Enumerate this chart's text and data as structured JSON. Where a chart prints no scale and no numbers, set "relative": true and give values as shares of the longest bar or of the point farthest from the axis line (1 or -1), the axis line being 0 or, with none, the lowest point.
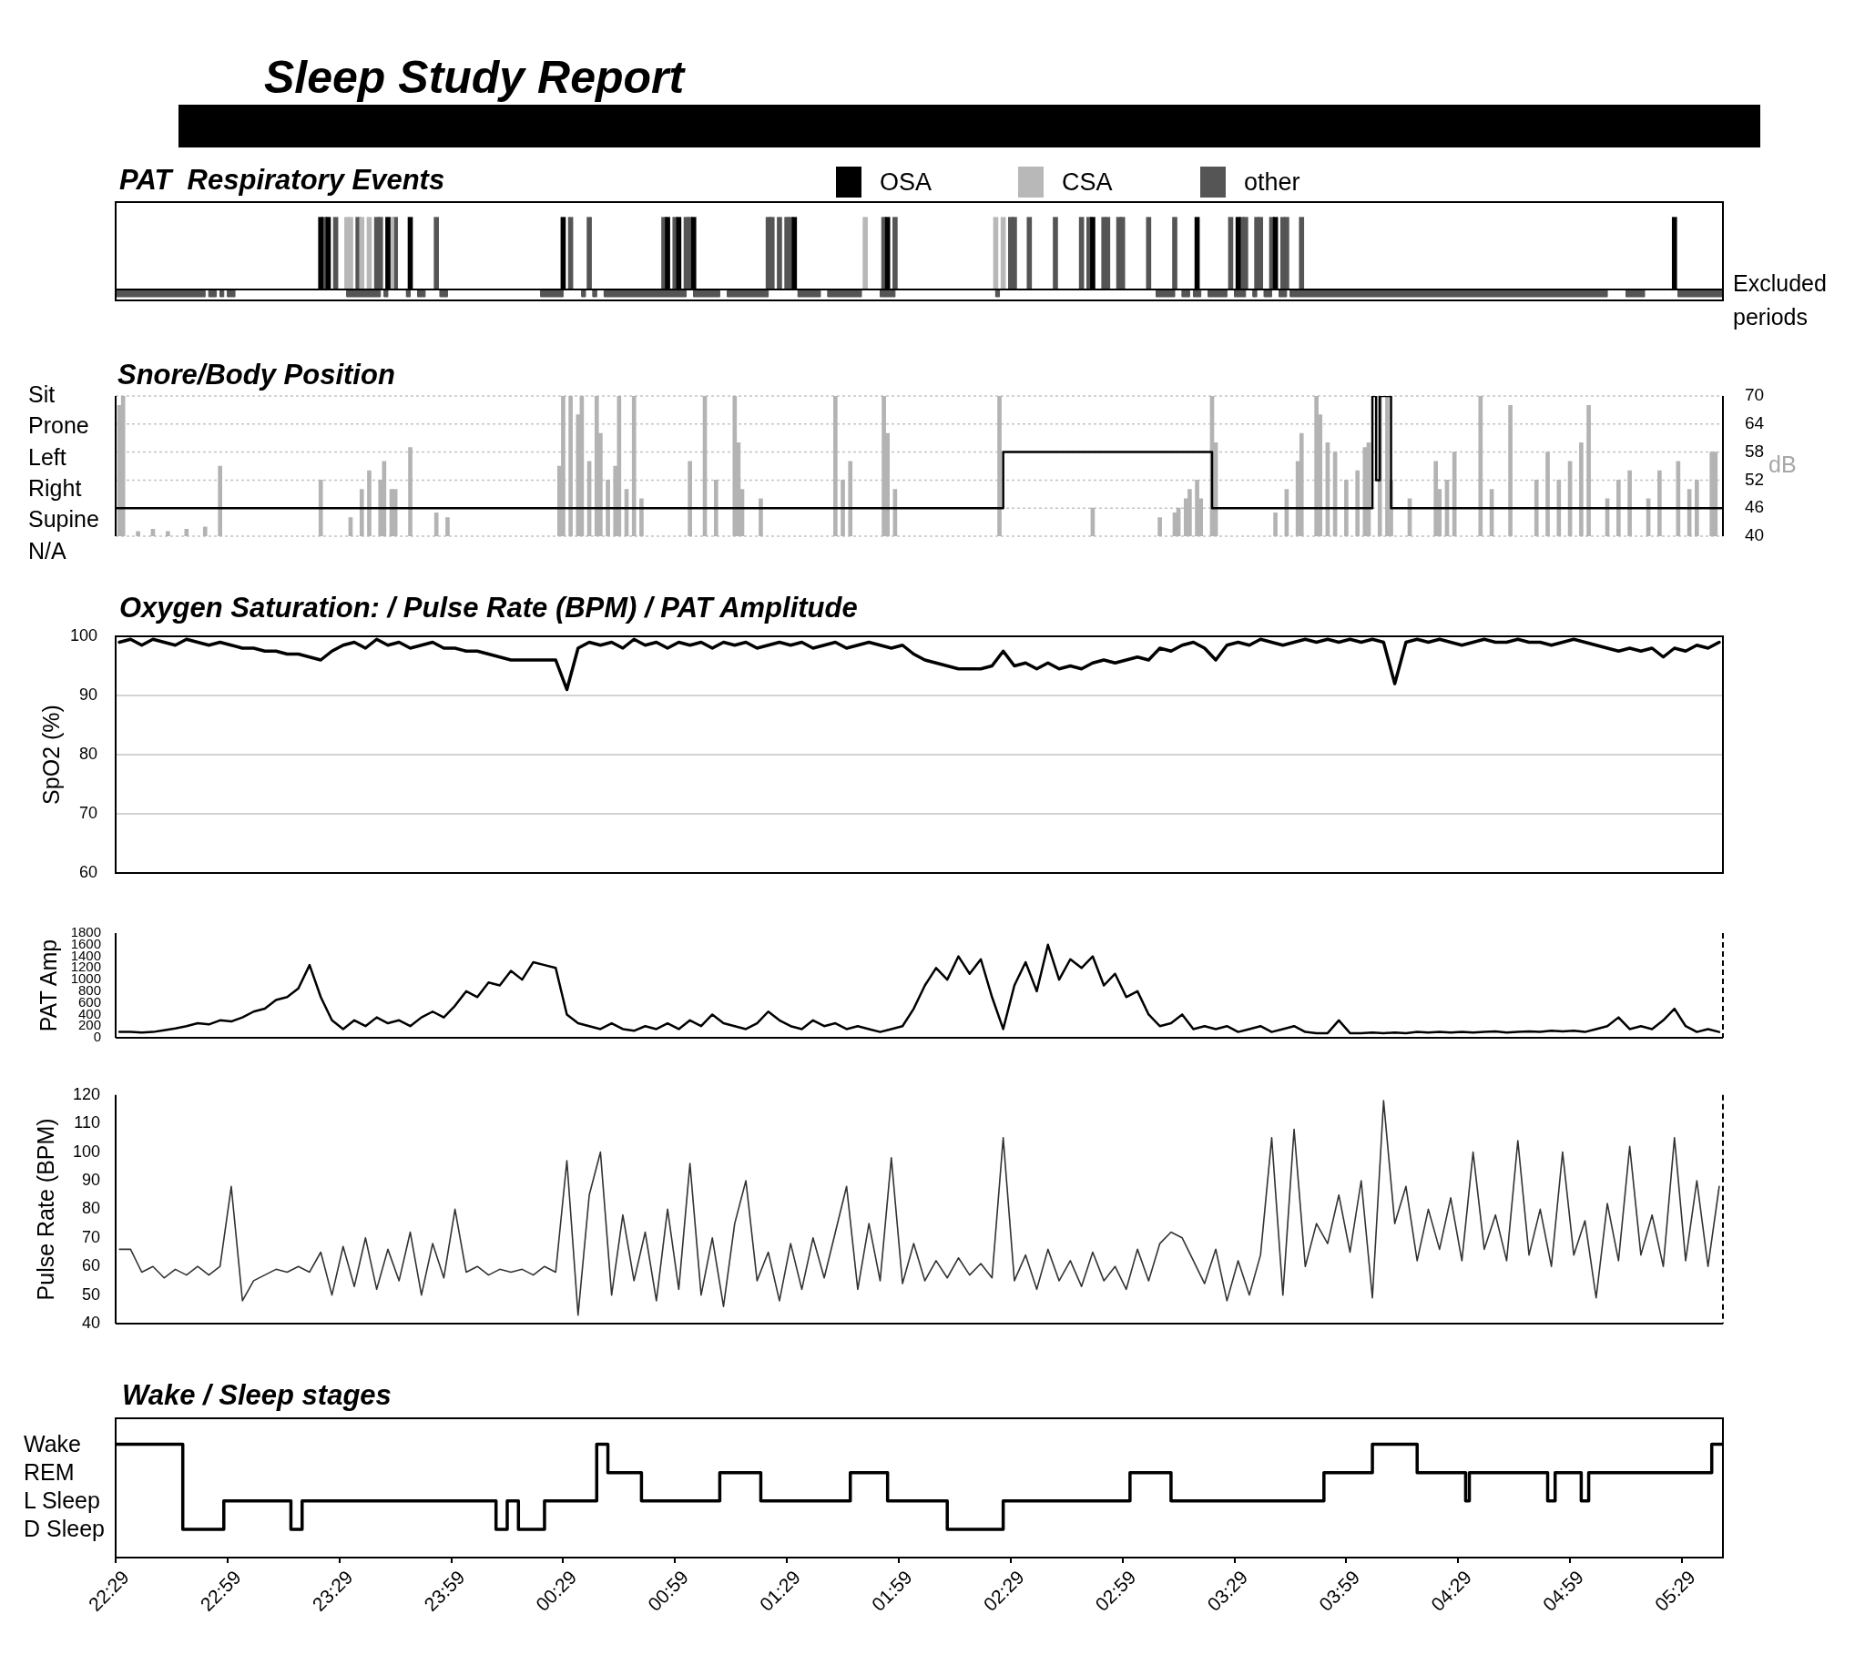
{
  "chart_data": [
    {
      "type": "other",
      "title": "Sleep Study Report"
    },
    {
      "type": "bar",
      "title": "PAT  Respiratory Events",
      "relative": true,
      "legend": "top",
      "tick_labels": false,
      "xlim": [
        "--01-01T22:29",
        "--01-02T05:40"
      ],
      "series": [
        {
          "name": "OSA",
          "color": "#000000",
          "x": [
            "--01-01T23:24",
            "--01-01T23:26",
            "--01-01T23:42",
            "--01-01T23:48",
            "--01-02T00:29",
            "--01-02T00:57",
            "--01-02T01:00",
            "--01-02T01:04",
            "--01-02T01:31",
            "--01-02T01:56",
            "--01-02T02:51",
            "--01-02T03:19",
            "--01-02T03:30",
            "--01-02T03:40",
            "--01-02T05:27"
          ],
          "values": [
            1,
            1,
            1,
            1,
            1,
            1,
            1,
            1,
            1,
            1,
            1,
            1,
            1,
            1,
            1
          ]
        },
        {
          "name": "CSA",
          "color": "#b8b8b8",
          "x": [
            "--01-01T23:31",
            "--01-01T23:32",
            "--01-01T23:35",
            "--01-01T23:37",
            "--01-01T23:43",
            "--01-02T01:50",
            "--01-02T02:25",
            "--01-02T02:27"
          ],
          "values": [
            1,
            1,
            1,
            1,
            1,
            1,
            1,
            1
          ]
        },
        {
          "name": "other",
          "color": "#555555",
          "x": [
            "--01-01T23:25",
            "--01-01T23:28",
            "--01-01T23:34",
            "--01-01T23:39",
            "--01-01T23:40",
            "--01-01T23:44",
            "--01-01T23:55",
            "--01-02T00:31",
            "--01-02T00:36",
            "--01-02T00:56",
            "--01-02T00:59",
            "--01-02T01:02",
            "--01-02T01:03",
            "--01-02T01:24",
            "--01-02T01:25",
            "--01-02T01:27",
            "--01-02T01:29",
            "--01-02T01:30",
            "--01-02T01:55",
            "--01-02T01:58",
            "--01-02T02:29",
            "--01-02T02:30",
            "--01-02T02:34",
            "--01-02T02:41",
            "--01-02T02:48",
            "--01-02T02:50",
            "--01-02T02:54",
            "--01-02T02:55",
            "--01-02T02:58",
            "--01-02T02:59",
            "--01-02T03:06",
            "--01-02T03:13",
            "--01-02T03:28",
            "--01-02T03:31",
            "--01-02T03:32",
            "--01-02T03:35",
            "--01-02T03:36",
            "--01-02T03:39",
            "--01-02T03:42",
            "--01-02T03:43",
            "--01-02T03:47"
          ],
          "values": [
            1,
            1,
            1,
            1,
            1,
            1,
            1,
            1,
            1,
            1,
            1,
            1,
            1,
            1,
            1,
            1,
            1,
            1,
            1,
            1,
            1,
            1,
            1,
            1,
            1,
            1,
            1,
            1,
            1,
            1,
            1,
            1,
            1,
            1,
            1,
            1,
            1,
            1,
            1,
            1,
            1
          ]
        },
        {
          "name": "Excluded periods",
          "type": "area",
          "color": "#555555",
          "x": [
            "--01-01T22:29",
            "--01-01T22:29",
            "--01-01T22:53",
            "--01-01T22:53",
            "--01-01T22:54",
            "--01-01T22:54",
            "--01-01T22:56",
            "--01-01T22:56",
            "--01-01T22:57",
            "--01-01T22:57",
            "--01-01T22:58",
            "--01-01T22:58",
            "--01-01T22:59",
            "--01-01T22:59",
            "--01-01T23:01",
            "--01-01T23:01",
            "--01-01T23:31",
            "--01-01T23:31",
            "--01-01T23:40",
            "--01-01T23:40",
            "--01-01T23:41",
            "--01-01T23:41",
            "--01-01T23:42",
            "--01-01T23:42",
            "--01-01T23:47",
            "--01-01T23:47",
            "--01-01T23:48",
            "--01-01T23:48",
            "--01-01T23:50",
            "--01-01T23:50",
            "--01-01T23:52",
            "--01-01T23:52",
            "--01-01T23:56",
            "--01-01T23:56",
            "--01-01T23:58",
            "--01-01T23:58",
            "--01-02T00:23",
            "--01-02T00:23",
            "--01-02T00:29",
            "--01-02T00:29",
            "--01-02T00:34",
            "--01-02T00:34",
            "--01-02T00:35",
            "--01-02T00:35",
            "--01-02T00:37",
            "--01-02T00:37",
            "--01-02T00:38",
            "--01-02T00:38",
            "--01-02T00:40",
            "--01-02T00:40",
            "--01-02T01:02",
            "--01-02T01:02",
            "--01-02T01:04",
            "--01-02T01:04",
            "--01-02T01:11",
            "--01-02T01:11",
            "--01-02T01:13",
            "--01-02T01:13",
            "--01-02T01:24",
            "--01-02T01:24",
            "--01-02T01:32",
            "--01-02T01:32",
            "--01-02T01:38",
            "--01-02T01:38",
            "--01-02T01:40",
            "--01-02T01:40",
            "--01-02T01:49",
            "--01-02T01:49",
            "--01-02T01:54",
            "--01-02T01:54",
            "--01-02T01:58",
            "--01-02T01:58",
            "--01-02T02:25",
            "--01-02T02:25",
            "--01-02T02:26",
            "--01-02T02:26",
            "--01-02T03:08",
            "--01-02T03:08",
            "--01-02T03:13",
            "--01-02T03:13",
            "--01-02T03:15",
            "--01-02T03:15",
            "--01-02T03:17",
            "--01-02T03:17",
            "--01-02T03:18",
            "--01-02T03:18",
            "--01-02T03:20",
            "--01-02T03:20",
            "--01-02T03:22",
            "--01-02T03:22",
            "--01-02T03:27",
            "--01-02T03:27",
            "--01-02T03:29",
            "--01-02T03:29",
            "--01-02T03:32",
            "--01-02T03:32",
            "--01-02T03:34",
            "--01-02T03:34",
            "--01-02T03:35",
            "--01-02T03:35",
            "--01-02T03:37",
            "--01-02T03:37",
            "--01-02T03:39",
            "--01-02T03:39",
            "--01-02T03:41",
            "--01-02T03:41",
            "--01-02T03:43",
            "--01-02T03:43",
            "--01-02T03:44",
            "--01-02T03:44",
            "--01-02T05:09",
            "--01-02T05:09",
            "--01-02T05:14",
            "--01-02T05:14",
            "--01-02T05:19",
            "--01-02T05:19",
            "--01-02T05:28",
            "--01-02T05:28",
            "--01-02T05:40",
            "--01-02T05:40"
          ],
          "values": [
            0,
            -0.1,
            -0.1,
            0,
            0,
            -0.1,
            -0.1,
            0,
            0,
            -0.1,
            -0.1,
            0,
            0,
            -0.1,
            -0.1,
            0,
            0,
            -0.1,
            -0.1,
            0,
            0,
            -0.1,
            -0.1,
            0,
            0,
            -0.1,
            -0.1,
            0,
            0,
            -0.1,
            -0.1,
            0,
            0,
            -0.1,
            -0.1,
            0,
            0,
            -0.1,
            -0.1,
            0,
            0,
            -0.1,
            -0.1,
            0,
            0,
            -0.1,
            -0.1,
            0,
            0,
            -0.1,
            -0.1,
            0,
            0,
            -0.1,
            -0.1,
            0,
            0,
            -0.1,
            -0.1,
            0,
            0,
            -0.1,
            -0.1,
            0,
            0,
            -0.1,
            -0.1,
            0,
            0,
            -0.1,
            -0.1,
            0,
            0,
            -0.1,
            -0.1,
            0,
            0,
            -0.1,
            -0.1,
            0,
            0,
            -0.1,
            -0.1,
            0,
            0,
            -0.1,
            -0.1,
            0,
            0,
            -0.1,
            -0.1,
            0,
            0,
            -0.1,
            -0.1,
            0,
            0,
            -0.1,
            -0.1,
            0,
            0,
            -0.1,
            -0.1,
            0,
            0,
            -0.1,
            -0.1,
            0,
            0,
            -0.1,
            -0.1,
            0,
            0,
            -0.1,
            -0.1,
            0,
            0,
            -0.1,
            -0.1,
            0
          ]
        }
      ]
    },
    {
      "type": "bar",
      "title": "Snore/Body Position",
      "ylabel": "dB",
      "tick_labels": "y",
      "grid": "y",
      "xlim": [
        "--01-01T22:29",
        "--01-02T05:40"
      ],
      "ylim": [
        40,
        70
      ],
      "yticks": [
        40,
        46,
        52,
        58,
        64,
        70
      ],
      "color": "#b3b3b3",
      "x": [
        "--01-01T22:30",
        "--01-01T22:31",
        "--01-01T22:35",
        "--01-01T22:39",
        "--01-01T22:43",
        "--01-01T22:48",
        "--01-01T22:53",
        "--01-01T22:57",
        "--01-01T23:24",
        "--01-01T23:32",
        "--01-01T23:35",
        "--01-01T23:37",
        "--01-01T23:40",
        "--01-01T23:41",
        "--01-01T23:43",
        "--01-01T23:44",
        "--01-01T23:48",
        "--01-01T23:55",
        "--01-01T23:58",
        "--01-02T00:28",
        "--01-02T00:29",
        "--01-02T00:31",
        "--01-02T00:33",
        "--01-02T00:34",
        "--01-02T00:36",
        "--01-02T00:38",
        "--01-02T00:39",
        "--01-02T00:41",
        "--01-02T00:43",
        "--01-02T00:44",
        "--01-02T00:46",
        "--01-02T00:48",
        "--01-02T00:50",
        "--01-02T01:03",
        "--01-02T01:07",
        "--01-02T01:10",
        "--01-02T01:15",
        "--01-02T01:16",
        "--01-02T01:17",
        "--01-02T01:22",
        "--01-02T01:42",
        "--01-02T01:44",
        "--01-02T01:46",
        "--01-02T01:55",
        "--01-02T01:56",
        "--01-02T01:58",
        "--01-02T02:26",
        "--01-02T02:51",
        "--01-02T03:09",
        "--01-02T03:13",
        "--01-02T03:14",
        "--01-02T03:16",
        "--01-02T03:17",
        "--01-02T03:19",
        "--01-02T03:20",
        "--01-02T03:23",
        "--01-02T03:24",
        "--01-02T03:40",
        "--01-02T03:43",
        "--01-02T03:46",
        "--01-02T03:47",
        "--01-02T03:51",
        "--01-02T03:52",
        "--01-02T03:54",
        "--01-02T03:56",
        "--01-02T03:59",
        "--01-02T04:02",
        "--01-02T04:04",
        "--01-02T04:05",
        "--01-02T04:08",
        "--01-02T04:10",
        "--01-02T04:11",
        "--01-02T04:16",
        "--01-02T04:23",
        "--01-02T04:24",
        "--01-02T04:26",
        "--01-02T04:28",
        "--01-02T04:35",
        "--01-02T04:38",
        "--01-02T04:43",
        "--01-02T04:50",
        "--01-02T04:53",
        "--01-02T04:56",
        "--01-02T04:59",
        "--01-02T05:02",
        "--01-02T05:04",
        "--01-02T05:09",
        "--01-02T05:12",
        "--01-02T05:15",
        "--01-02T05:20",
        "--01-02T05:23",
        "--01-02T05:28",
        "--01-02T05:31",
        "--01-02T05:33",
        "--01-02T05:37",
        "--01-02T05:38"
      ],
      "values": [
        68,
        70,
        41,
        41.5,
        41,
        41.5,
        42,
        55,
        52,
        44,
        50,
        54,
        52,
        56,
        50,
        50,
        59,
        45,
        44,
        55,
        70,
        70,
        66,
        70,
        56,
        70,
        62,
        52,
        55,
        70,
        50,
        70,
        48,
        56,
        70,
        52,
        70,
        60,
        50,
        48,
        70,
        52,
        56,
        70,
        62,
        50,
        70,
        46,
        44,
        45,
        46,
        48,
        50,
        52,
        48,
        70,
        60,
        45,
        50,
        56,
        62,
        70,
        66,
        60,
        58,
        52,
        54,
        59,
        60,
        70,
        70,
        52,
        48,
        56,
        50,
        52,
        58,
        70,
        50,
        68,
        52,
        58,
        52,
        56,
        60,
        68,
        48,
        52,
        54,
        48,
        54,
        56,
        50,
        52,
        58,
        58
      ]
    },
    {
      "type": "step",
      "relative": true,
      "tick_labels": false,
      "xlim": [
        "--01-01T22:29",
        "--01-02T05:40"
      ],
      "color": "#000000",
      "x": [
        "--01-01T22:29",
        "--01-02T02:27",
        "--01-02T03:23",
        "--01-02T04:06",
        "--01-02T04:07",
        "--01-02T04:08",
        "--01-02T04:11",
        "--01-02T05:40"
      ],
      "values": [
        0,
        0.5,
        0,
        1,
        0.25,
        1,
        0,
        0
      ],
      "annotations": [
        "Sit",
        "Prone",
        "Left",
        "Right",
        "Supine",
        "N/A"
      ]
    },
    {
      "type": "line",
      "title": "Oxygen Saturation: / Pulse Rate (BPM) / PAT Amplitude",
      "ylabel": "SpO2 (%)",
      "tick_labels": "y",
      "grid": "y",
      "xlim": [
        "--01-01T22:29",
        "--01-02T05:40"
      ],
      "ylim": [
        60,
        100
      ],
      "yticks": [
        60,
        70,
        80,
        90,
        100
      ],
      "color": "#000000",
      "x": [
        "--01-01T22:30",
        "--01-01T22:33",
        "--01-01T22:36",
        "--01-01T22:39",
        "--01-01T22:42",
        "--01-01T22:45",
        "--01-01T22:48",
        "--01-01T22:51",
        "--01-01T22:54",
        "--01-01T22:57",
        "--01-01T23:00",
        "--01-01T23:03",
        "--01-01T23:06",
        "--01-01T23:09",
        "--01-01T23:12",
        "--01-01T23:15",
        "--01-01T23:18",
        "--01-01T23:21",
        "--01-01T23:24",
        "--01-01T23:27",
        "--01-01T23:30",
        "--01-01T23:33",
        "--01-01T23:36",
        "--01-01T23:39",
        "--01-01T23:42",
        "--01-01T23:45",
        "--01-01T23:48",
        "--01-01T23:51",
        "--01-01T23:54",
        "--01-01T23:57",
        "--01-02T00:00",
        "--01-02T00:03",
        "--01-02T00:06",
        "--01-02T00:09",
        "--01-02T00:12",
        "--01-02T00:15",
        "--01-02T00:18",
        "--01-02T00:21",
        "--01-02T00:24",
        "--01-02T00:27",
        "--01-02T00:30",
        "--01-02T00:33",
        "--01-02T00:36",
        "--01-02T00:39",
        "--01-02T00:42",
        "--01-02T00:45",
        "--01-02T00:48",
        "--01-02T00:51",
        "--01-02T00:54",
        "--01-02T00:57",
        "--01-02T01:00",
        "--01-02T01:03",
        "--01-02T01:06",
        "--01-02T01:09",
        "--01-02T01:12",
        "--01-02T01:15",
        "--01-02T01:18",
        "--01-02T01:21",
        "--01-02T01:24",
        "--01-02T01:27",
        "--01-02T01:30",
        "--01-02T01:33",
        "--01-02T01:36",
        "--01-02T01:39",
        "--01-02T01:42",
        "--01-02T01:45",
        "--01-02T01:48",
        "--01-02T01:51",
        "--01-02T01:54",
        "--01-02T01:57",
        "--01-02T02:00",
        "--01-02T02:03",
        "--01-02T02:06",
        "--01-02T02:09",
        "--01-02T02:12",
        "--01-02T02:15",
        "--01-02T02:18",
        "--01-02T02:21",
        "--01-02T02:24",
        "--01-02T02:27",
        "--01-02T02:30",
        "--01-02T02:33",
        "--01-02T02:36",
        "--01-02T02:39",
        "--01-02T02:42",
        "--01-02T02:45",
        "--01-02T02:48",
        "--01-02T02:51",
        "--01-02T02:54",
        "--01-02T02:57",
        "--01-02T03:00",
        "--01-02T03:03",
        "--01-02T03:06",
        "--01-02T03:09",
        "--01-02T03:12",
        "--01-02T03:15",
        "--01-02T03:18",
        "--01-02T03:21",
        "--01-02T03:24",
        "--01-02T03:27",
        "--01-02T03:30",
        "--01-02T03:33",
        "--01-02T03:36",
        "--01-02T03:39",
        "--01-02T03:42",
        "--01-02T03:45",
        "--01-02T03:48",
        "--01-02T03:51",
        "--01-02T03:54",
        "--01-02T03:57",
        "--01-02T04:00",
        "--01-02T04:03",
        "--01-02T04:06",
        "--01-02T04:09",
        "--01-02T04:12",
        "--01-02T04:15",
        "--01-02T04:18",
        "--01-02T04:21",
        "--01-02T04:24",
        "--01-02T04:27",
        "--01-02T04:30",
        "--01-02T04:33",
        "--01-02T04:36",
        "--01-02T04:39",
        "--01-02T04:42",
        "--01-02T04:45",
        "--01-02T04:48",
        "--01-02T04:51",
        "--01-02T04:54",
        "--01-02T04:57",
        "--01-02T05:00",
        "--01-02T05:03",
        "--01-02T05:06",
        "--01-02T05:09",
        "--01-02T05:12",
        "--01-02T05:15",
        "--01-02T05:18",
        "--01-02T05:21",
        "--01-02T05:24",
        "--01-02T05:27",
        "--01-02T05:30",
        "--01-02T05:33",
        "--01-02T05:36",
        "--01-02T05:39"
      ],
      "values": [
        99,
        99.5,
        98.5,
        99.5,
        99,
        98.5,
        99.5,
        99,
        98.5,
        99,
        98.5,
        98,
        98,
        97.5,
        97.5,
        97,
        97,
        96.5,
        96,
        97.5,
        98.5,
        99,
        98,
        99.5,
        98.5,
        99,
        98,
        98.5,
        99,
        98,
        98,
        97.5,
        97.5,
        97,
        96.5,
        96,
        96,
        96,
        96,
        96,
        91,
        98,
        99,
        98.5,
        99,
        98,
        99.5,
        98.5,
        99,
        98,
        99,
        98.5,
        99,
        98,
        99,
        98.5,
        99,
        98,
        98.5,
        99,
        98.5,
        99,
        98,
        98.5,
        99,
        98,
        98.5,
        99,
        98.5,
        98,
        98.5,
        97,
        96,
        95.5,
        95,
        94.5,
        94.5,
        94.5,
        95,
        97.5,
        95,
        95.5,
        94.5,
        95.5,
        94.5,
        95,
        94.5,
        95.5,
        96,
        95.5,
        96,
        96.5,
        96,
        98,
        97.5,
        98.5,
        99,
        98,
        96,
        98.5,
        99,
        98.5,
        99.5,
        99,
        98.5,
        99,
        99.5,
        99,
        99.5,
        99,
        99.5,
        99,
        99.5,
        99,
        92,
        99,
        99.5,
        99,
        99.5,
        99,
        98.5,
        99,
        99.5,
        99,
        99,
        99.5,
        99,
        99,
        98.5,
        99,
        99.5,
        99,
        98.5,
        98,
        97.5,
        98,
        97.5,
        98,
        96.5,
        98,
        97.5,
        98.5,
        98,
        99
      ]
    },
    {
      "type": "line",
      "ylabel": "PAT Amp",
      "tick_labels": "y",
      "xlim": [
        "--01-01T22:29",
        "--01-02T05:40"
      ],
      "ylim": [
        0,
        1800
      ],
      "yticks": [
        0,
        200,
        400,
        600,
        800,
        1000,
        1200,
        1400,
        1600,
        1800
      ],
      "color": "#000000",
      "x": [
        "--01-01T22:30",
        "--01-01T22:33",
        "--01-01T22:36",
        "--01-01T22:39",
        "--01-01T22:42",
        "--01-01T22:45",
        "--01-01T22:48",
        "--01-01T22:51",
        "--01-01T22:54",
        "--01-01T22:57",
        "--01-01T23:00",
        "--01-01T23:03",
        "--01-01T23:06",
        "--01-01T23:09",
        "--01-01T23:12",
        "--01-01T23:15",
        "--01-01T23:18",
        "--01-01T23:21",
        "--01-01T23:24",
        "--01-01T23:27",
        "--01-01T23:30",
        "--01-01T23:33",
        "--01-01T23:36",
        "--01-01T23:39",
        "--01-01T23:42",
        "--01-01T23:45",
        "--01-01T23:48",
        "--01-01T23:51",
        "--01-01T23:54",
        "--01-01T23:57",
        "--01-02T00:00",
        "--01-02T00:03",
        "--01-02T00:06",
        "--01-02T00:09",
        "--01-02T00:12",
        "--01-02T00:15",
        "--01-02T00:18",
        "--01-02T00:21",
        "--01-02T00:24",
        "--01-02T00:27",
        "--01-02T00:30",
        "--01-02T00:33",
        "--01-02T00:36",
        "--01-02T00:39",
        "--01-02T00:42",
        "--01-02T00:45",
        "--01-02T00:48",
        "--01-02T00:51",
        "--01-02T00:54",
        "--01-02T00:57",
        "--01-02T01:00",
        "--01-02T01:03",
        "--01-02T01:06",
        "--01-02T01:09",
        "--01-02T01:12",
        "--01-02T01:15",
        "--01-02T01:18",
        "--01-02T01:21",
        "--01-02T01:24",
        "--01-02T01:27",
        "--01-02T01:30",
        "--01-02T01:33",
        "--01-02T01:36",
        "--01-02T01:39",
        "--01-02T01:42",
        "--01-02T01:45",
        "--01-02T01:48",
        "--01-02T01:51",
        "--01-02T01:54",
        "--01-02T01:57",
        "--01-02T02:00",
        "--01-02T02:03",
        "--01-02T02:06",
        "--01-02T02:09",
        "--01-02T02:12",
        "--01-02T02:15",
        "--01-02T02:18",
        "--01-02T02:21",
        "--01-02T02:24",
        "--01-02T02:27",
        "--01-02T02:30",
        "--01-02T02:33",
        "--01-02T02:36",
        "--01-02T02:39",
        "--01-02T02:42",
        "--01-02T02:45",
        "--01-02T02:48",
        "--01-02T02:51",
        "--01-02T02:54",
        "--01-02T02:57",
        "--01-02T03:00",
        "--01-02T03:03",
        "--01-02T03:06",
        "--01-02T03:09",
        "--01-02T03:12",
        "--01-02T03:15",
        "--01-02T03:18",
        "--01-02T03:21",
        "--01-02T03:24",
        "--01-02T03:27",
        "--01-02T03:30",
        "--01-02T03:33",
        "--01-02T03:36",
        "--01-02T03:39",
        "--01-02T03:42",
        "--01-02T03:45",
        "--01-02T03:48",
        "--01-02T03:51",
        "--01-02T03:54",
        "--01-02T03:57",
        "--01-02T04:00",
        "--01-02T04:03",
        "--01-02T04:06",
        "--01-02T04:09",
        "--01-02T04:12",
        "--01-02T04:15",
        "--01-02T04:18",
        "--01-02T04:21",
        "--01-02T04:24",
        "--01-02T04:27",
        "--01-02T04:30",
        "--01-02T04:33",
        "--01-02T04:36",
        "--01-02T04:39",
        "--01-02T04:42",
        "--01-02T04:45",
        "--01-02T04:48",
        "--01-02T04:51",
        "--01-02T04:54",
        "--01-02T04:57",
        "--01-02T05:00",
        "--01-02T05:03",
        "--01-02T05:06",
        "--01-02T05:09",
        "--01-02T05:12",
        "--01-02T05:15",
        "--01-02T05:18",
        "--01-02T05:21",
        "--01-02T05:24",
        "--01-02T05:27",
        "--01-02T05:30",
        "--01-02T05:33",
        "--01-02T05:36",
        "--01-02T05:39"
      ],
      "values": [
        100,
        100,
        90,
        100,
        130,
        160,
        200,
        250,
        230,
        300,
        280,
        350,
        450,
        500,
        650,
        700,
        850,
        1250,
        700,
        300,
        150,
        300,
        200,
        350,
        250,
        300,
        200,
        350,
        450,
        350,
        550,
        800,
        700,
        950,
        900,
        1150,
        1000,
        1300,
        1250,
        1200,
        400,
        250,
        200,
        150,
        250,
        150,
        120,
        200,
        150,
        250,
        150,
        300,
        200,
        400,
        250,
        200,
        150,
        250,
        450,
        300,
        200,
        150,
        300,
        200,
        250,
        150,
        200,
        150,
        100,
        150,
        200,
        500,
        900,
        1200,
        1000,
        1400,
        1100,
        1350,
        700,
        150,
        900,
        1300,
        800,
        1600,
        1000,
        1350,
        1200,
        1400,
        900,
        1100,
        700,
        800,
        400,
        200,
        250,
        400,
        150,
        200,
        150,
        200,
        100,
        150,
        200,
        100,
        150,
        200,
        100,
        80,
        80,
        300,
        80,
        80,
        90,
        80,
        90,
        80,
        100,
        90,
        100,
        90,
        100,
        90,
        100,
        110,
        90,
        100,
        110,
        100,
        120,
        110,
        120,
        100,
        150,
        200,
        350,
        150,
        200,
        150,
        300,
        500,
        200,
        100,
        150,
        100
      ]
    },
    {
      "type": "line",
      "ylabel": "Pulse Rate (BPM)",
      "tick_labels": "y",
      "xlim": [
        "--01-01T22:29",
        "--01-02T05:40"
      ],
      "ylim": [
        40,
        120
      ],
      "yticks": [
        40,
        50,
        60,
        70,
        80,
        90,
        100,
        110,
        120
      ],
      "color": "#333333",
      "x": [
        "--01-01T22:30",
        "--01-01T22:33",
        "--01-01T22:36",
        "--01-01T22:39",
        "--01-01T22:42",
        "--01-01T22:45",
        "--01-01T22:48",
        "--01-01T22:51",
        "--01-01T22:54",
        "--01-01T22:57",
        "--01-01T23:00",
        "--01-01T23:03",
        "--01-01T23:06",
        "--01-01T23:09",
        "--01-01T23:12",
        "--01-01T23:15",
        "--01-01T23:18",
        "--01-01T23:21",
        "--01-01T23:24",
        "--01-01T23:27",
        "--01-01T23:30",
        "--01-01T23:33",
        "--01-01T23:36",
        "--01-01T23:39",
        "--01-01T23:42",
        "--01-01T23:45",
        "--01-01T23:48",
        "--01-01T23:51",
        "--01-01T23:54",
        "--01-01T23:57",
        "--01-02T00:00",
        "--01-02T00:03",
        "--01-02T00:06",
        "--01-02T00:09",
        "--01-02T00:12",
        "--01-02T00:15",
        "--01-02T00:18",
        "--01-02T00:21",
        "--01-02T00:24",
        "--01-02T00:27",
        "--01-02T00:30",
        "--01-02T00:33",
        "--01-02T00:36",
        "--01-02T00:39",
        "--01-02T00:42",
        "--01-02T00:45",
        "--01-02T00:48",
        "--01-02T00:51",
        "--01-02T00:54",
        "--01-02T00:57",
        "--01-02T01:00",
        "--01-02T01:03",
        "--01-02T01:06",
        "--01-02T01:09",
        "--01-02T01:12",
        "--01-02T01:15",
        "--01-02T01:18",
        "--01-02T01:21",
        "--01-02T01:24",
        "--01-02T01:27",
        "--01-02T01:30",
        "--01-02T01:33",
        "--01-02T01:36",
        "--01-02T01:39",
        "--01-02T01:42",
        "--01-02T01:45",
        "--01-02T01:48",
        "--01-02T01:51",
        "--01-02T01:54",
        "--01-02T01:57",
        "--01-02T02:00",
        "--01-02T02:03",
        "--01-02T02:06",
        "--01-02T02:09",
        "--01-02T02:12",
        "--01-02T02:15",
        "--01-02T02:18",
        "--01-02T02:21",
        "--01-02T02:24",
        "--01-02T02:27",
        "--01-02T02:30",
        "--01-02T02:33",
        "--01-02T02:36",
        "--01-02T02:39",
        "--01-02T02:42",
        "--01-02T02:45",
        "--01-02T02:48",
        "--01-02T02:51",
        "--01-02T02:54",
        "--01-02T02:57",
        "--01-02T03:00",
        "--01-02T03:03",
        "--01-02T03:06",
        "--01-02T03:09",
        "--01-02T03:12",
        "--01-02T03:15",
        "--01-02T03:18",
        "--01-02T03:21",
        "--01-02T03:24",
        "--01-02T03:27",
        "--01-02T03:30",
        "--01-02T03:33",
        "--01-02T03:36",
        "--01-02T03:39",
        "--01-02T03:42",
        "--01-02T03:45",
        "--01-02T03:48",
        "--01-02T03:51",
        "--01-02T03:54",
        "--01-02T03:57",
        "--01-02T04:00",
        "--01-02T04:03",
        "--01-02T04:06",
        "--01-02T04:09",
        "--01-02T04:12",
        "--01-02T04:15",
        "--01-02T04:18",
        "--01-02T04:21",
        "--01-02T04:24",
        "--01-02T04:27",
        "--01-02T04:30",
        "--01-02T04:33",
        "--01-02T04:36",
        "--01-02T04:39",
        "--01-02T04:42",
        "--01-02T04:45",
        "--01-02T04:48",
        "--01-02T04:51",
        "--01-02T04:54",
        "--01-02T04:57",
        "--01-02T05:00",
        "--01-02T05:03",
        "--01-02T05:06",
        "--01-02T05:09",
        "--01-02T05:12",
        "--01-02T05:15",
        "--01-02T05:18",
        "--01-02T05:21",
        "--01-02T05:24",
        "--01-02T05:27",
        "--01-02T05:30",
        "--01-02T05:33",
        "--01-02T05:36",
        "--01-02T05:39"
      ],
      "values": [
        66,
        66,
        58,
        60,
        56,
        59,
        57,
        60,
        57,
        60,
        88,
        48,
        55,
        57,
        59,
        58,
        60,
        58,
        65,
        50,
        67,
        53,
        70,
        52,
        66,
        55,
        72,
        50,
        68,
        56,
        80,
        58,
        60,
        57,
        59,
        58,
        59,
        57,
        60,
        58,
        97,
        43,
        85,
        100,
        50,
        78,
        55,
        72,
        48,
        80,
        52,
        96,
        50,
        70,
        46,
        75,
        90,
        55,
        65,
        48,
        68,
        52,
        70,
        56,
        72,
        88,
        52,
        75,
        55,
        98,
        54,
        68,
        55,
        62,
        56,
        63,
        57,
        61,
        56,
        105,
        55,
        64,
        52,
        66,
        55,
        62,
        53,
        65,
        55,
        60,
        52,
        66,
        55,
        68,
        72,
        70,
        62,
        54,
        66,
        48,
        62,
        50,
        64,
        105,
        50,
        108,
        60,
        75,
        68,
        85,
        65,
        90,
        49,
        118,
        75,
        88,
        62,
        80,
        66,
        84,
        62,
        100,
        66,
        78,
        62,
        104,
        64,
        80,
        60,
        100,
        64,
        76,
        49,
        82,
        62,
        102,
        64,
        78,
        60,
        105,
        62,
        90,
        60,
        88
      ]
    },
    {
      "type": "step",
      "title": "Wake / Sleep stages",
      "relative": true,
      "tick_labels": "x",
      "xlim": [
        "--01-01T22:29",
        "--01-02T05:40"
      ],
      "xticks": [
        {
          "value": "--01-01T22:29",
          "label": "22:29"
        },
        {
          "value": "--01-01T22:59",
          "label": "22:59"
        },
        {
          "value": "--01-01T23:29",
          "label": "23:29"
        },
        {
          "value": "--01-01T23:59",
          "label": "23:59"
        },
        {
          "value": "--01-02T00:29",
          "label": "00:29"
        },
        {
          "value": "--01-02T00:59",
          "label": "00:59"
        },
        {
          "value": "--01-02T01:29",
          "label": "01:29"
        },
        {
          "value": "--01-02T01:59",
          "label": "01:59"
        },
        {
          "value": "--01-02T02:29",
          "label": "02:29"
        },
        {
          "value": "--01-02T02:59",
          "label": "02:59"
        },
        {
          "value": "--01-02T03:29",
          "label": "03:29"
        },
        {
          "value": "--01-02T03:59",
          "label": "03:59"
        },
        {
          "value": "--01-02T04:29",
          "label": "04:29"
        },
        {
          "value": "--01-02T04:59",
          "label": "04:59"
        },
        {
          "value": "--01-02T05:29",
          "label": "05:29"
        }
      ],
      "color": "#000000",
      "x": [
        "--01-01T22:29",
        "--01-01T22:47",
        "--01-01T22:58",
        "--01-01T23:16",
        "--01-01T23:19",
        "--01-02T00:11",
        "--01-02T00:14",
        "--01-02T00:17",
        "--01-02T00:24",
        "--01-02T00:38",
        "--01-02T00:41",
        "--01-02T00:50",
        "--01-02T01:11",
        "--01-02T01:22",
        "--01-02T01:46",
        "--01-02T01:56",
        "--01-02T02:12",
        "--01-02T02:27",
        "--01-02T03:01",
        "--01-02T03:12",
        "--01-02T03:53",
        "--01-02T04:06",
        "--01-02T04:18",
        "--01-02T04:31",
        "--01-02T04:32",
        "--01-02T04:53",
        "--01-02T04:55",
        "--01-02T05:02",
        "--01-02T05:04",
        "--01-02T05:37",
        "--01-02T05:40"
      ],
      "values": [
        1,
        0.25,
        0.5,
        0.25,
        0.5,
        0.25,
        0.5,
        0.25,
        0.5,
        1,
        0.75,
        0.5,
        0.75,
        0.5,
        0.75,
        0.5,
        0.25,
        0.5,
        0.75,
        0.5,
        0.75,
        1,
        0.75,
        0.5,
        0.75,
        0.5,
        0.75,
        0.5,
        0.75,
        1,
        1
      ],
      "annotations": [
        "Wake",
        "REM",
        "L Sleep",
        "D Sleep"
      ]
    }
  ]
}
